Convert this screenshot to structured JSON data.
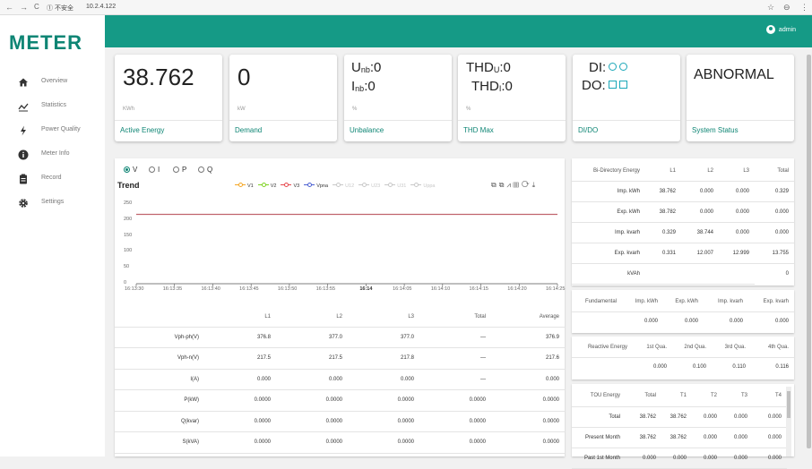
{
  "browser": {
    "back": "←",
    "forward": "→",
    "reload": "C",
    "security": "① 不安全",
    "url": "10.2.4.122",
    "star": "☆",
    "profile": "⊖",
    "menu": "⋮"
  },
  "app": {
    "logo": "METER",
    "user": "admin"
  },
  "sidebar": {
    "items": [
      {
        "label": "Overview",
        "icon": "home-icon"
      },
      {
        "label": "Statistics",
        "icon": "trend-icon"
      },
      {
        "label": "Power Quality",
        "icon": "bolt-icon"
      },
      {
        "label": "Meter Info",
        "icon": "info-icon"
      },
      {
        "label": "Record",
        "icon": "clipboard-icon"
      },
      {
        "label": "Settings",
        "icon": "gear-icon"
      }
    ]
  },
  "cards": {
    "active_energy": {
      "value": "38.762",
      "unit": "KWh",
      "title": "Active Energy"
    },
    "demand": {
      "value": "0",
      "unit": "kW",
      "title": "Demand"
    },
    "unbalance": {
      "u_label": "U",
      "u_sub": "nb",
      "u_value": ":0",
      "i_label": "I",
      "i_sub": "nb",
      "i_value": ":0",
      "unit": "%",
      "title": "Unbalance"
    },
    "thd_max": {
      "u_label": "THD",
      "u_sub": "U",
      "u_value": ":0",
      "i_label": "THD",
      "i_sub": "I",
      "i_value": ":0",
      "unit": "%",
      "title": "THD Max"
    },
    "di_do": {
      "di_label": "DI:",
      "do_label": "DO:",
      "title": "DI/DO"
    },
    "system_status": {
      "value": "ABNORMAL",
      "title": "System Status"
    }
  },
  "trend": {
    "title": "Trend",
    "radios": [
      "V",
      "I",
      "P",
      "Q"
    ],
    "selected": "V",
    "legend": [
      {
        "name": "V1",
        "color": "#f5a623",
        "active": true
      },
      {
        "name": "V2",
        "color": "#7ed321",
        "active": true
      },
      {
        "name": "V3",
        "color": "#e5484d",
        "active": true
      },
      {
        "name": "Vpna",
        "color": "#4a5fd1",
        "active": true
      },
      {
        "name": "U12",
        "color": "#c8c8c8",
        "active": false
      },
      {
        "name": "U23",
        "color": "#c8c8c8",
        "active": false
      },
      {
        "name": "U31",
        "color": "#c8c8c8",
        "active": false
      },
      {
        "name": "Uppa",
        "color": "#c8c8c8",
        "active": false
      }
    ],
    "toolbox": "⧉⧉⩘▥⟳⤓"
  },
  "chart_data": {
    "type": "line",
    "x": [
      "16:13:30",
      "16:13:35",
      "16:13:40",
      "16:13:45",
      "16:13:50",
      "16:13:55",
      "16:14",
      "16:14:05",
      "16:14:10",
      "16:14:15",
      "16:14:20",
      "16:14:25"
    ],
    "yticks": [
      0,
      50,
      100,
      150,
      200,
      250
    ],
    "ylim": [
      0,
      250
    ],
    "series": [
      {
        "name": "V3",
        "color": "#c0646e",
        "values": [
          217.8,
          217.8,
          217.8,
          217.8,
          217.8,
          217.8,
          217.8,
          217.8,
          217.8,
          217.8,
          217.8,
          217.8
        ]
      }
    ],
    "grid": false,
    "legend": "top"
  },
  "measure_table": {
    "headers": [
      "",
      "L1",
      "L2",
      "L3",
      "Total",
      "Average"
    ],
    "rows": [
      [
        "Vph-ph(V)",
        "376.8",
        "377.0",
        "377.0",
        "—",
        "376.9"
      ],
      [
        "Vph-n(V)",
        "217.5",
        "217.5",
        "217.8",
        "—",
        "217.6"
      ],
      [
        "I(A)",
        "0.000",
        "0.000",
        "0.000",
        "—",
        "0.000"
      ],
      [
        "P(kW)",
        "0.0000",
        "0.0000",
        "0.0000",
        "0.0000",
        "0.0000"
      ],
      [
        "Q(kvar)",
        "0.0000",
        "0.0000",
        "0.0000",
        "0.0000",
        "0.0000"
      ],
      [
        "S(kVA)",
        "0.0000",
        "0.0000",
        "0.0000",
        "0.0000",
        "0.0000"
      ]
    ]
  },
  "bidir_table": {
    "headers": [
      "Bi-Directory Energy",
      "L1",
      "L2",
      "L3",
      "Total"
    ],
    "rows": [
      [
        "Imp. kWh",
        "38.762",
        "0.000",
        "0.000",
        "0.329"
      ],
      [
        "Exp. kWh",
        "38.782",
        "0.000",
        "0.000",
        "0.000"
      ],
      [
        "Imp. kvarh",
        "0.329",
        "38.744",
        "0.000",
        "0.000"
      ],
      [
        "Exp. kvarh",
        "0.331",
        "12.007",
        "12.999",
        "13.755"
      ],
      [
        "kVAh",
        "",
        "",
        "",
        "0"
      ]
    ]
  },
  "fund_table": {
    "headers": [
      "Fundamental",
      "Imp. kWh",
      "Exp. kWh",
      "Imp. kvarh",
      "Exp. kvarh"
    ],
    "rows": [
      [
        "",
        "0.000",
        "0.000",
        "0.000",
        "0.000"
      ]
    ]
  },
  "reactive_table": {
    "headers": [
      "Reactive Energy",
      "1st Qua.",
      "2nd Qua.",
      "3rd Qua.",
      "4th Qua."
    ],
    "rows": [
      [
        "",
        "0.000",
        "0.100",
        "0.110",
        "0.116"
      ]
    ]
  },
  "tou_table": {
    "headers": [
      "TOU Energy",
      "Total",
      "T1",
      "T2",
      "T3",
      "T4"
    ],
    "rows": [
      [
        "Total",
        "38.762",
        "38.762",
        "0.000",
        "0.000",
        "0.000"
      ],
      [
        "Present Month",
        "38.762",
        "38.762",
        "0.000",
        "0.000",
        "0.000"
      ],
      [
        "Past 1st Month",
        "0.000",
        "0.000",
        "0.000",
        "0.000",
        "0.000"
      ]
    ]
  }
}
